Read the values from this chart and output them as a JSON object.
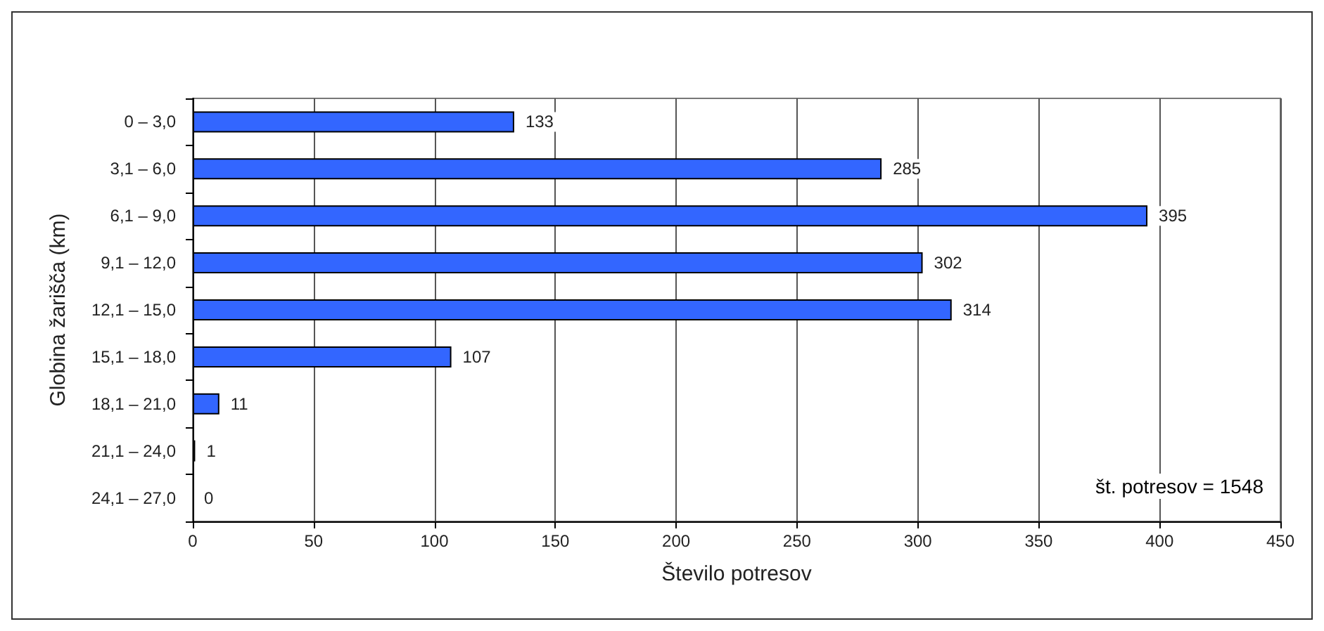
{
  "chart_data": {
    "type": "bar",
    "orientation": "horizontal",
    "categories": [
      "0 – 3,0",
      "3,1 – 6,0",
      "6,1 – 9,0",
      "9,1 – 12,0",
      "12,1 – 15,0",
      "15,1 – 18,0",
      "18,1 – 21,0",
      "21,1 – 24,0",
      "24,1 – 27,0"
    ],
    "values": [
      133,
      285,
      395,
      302,
      314,
      107,
      11,
      1,
      0
    ],
    "color": "#3366ff",
    "xlabel": "Število potresov",
    "ylabel": "Globina žarišča (km)",
    "xlim": [
      0,
      450
    ],
    "xticks": [
      0,
      50,
      100,
      150,
      200,
      250,
      300,
      350,
      400,
      450
    ],
    "grid": "x",
    "data_labels": true,
    "annotations": [
      "št. potresov = 1548"
    ]
  }
}
